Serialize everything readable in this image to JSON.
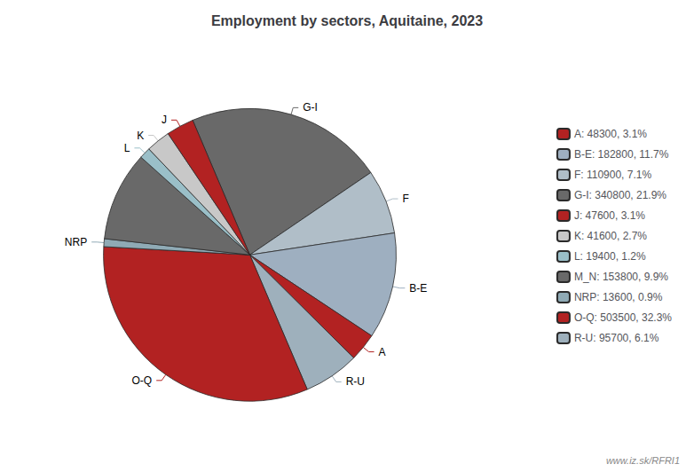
{
  "chart_data": {
    "type": "pie",
    "title": "Employment by sectors, Aquitaine, 2023",
    "categories": [
      "G-I",
      "F",
      "B-E",
      "A",
      "R-U",
      "O-Q",
      "NRP",
      "M_N",
      "L",
      "K",
      "J"
    ],
    "values": [
      340800,
      110900,
      182800,
      48300,
      95700,
      503500,
      13600,
      153800,
      19400,
      41600,
      47600
    ],
    "colors": [
      "#696969",
      "#b0bec8",
      "#9eafc0",
      "#b22222",
      "#9eb0bc",
      "#b22222",
      "#8faab5",
      "#696969",
      "#9abfc8",
      "#c8c8c8",
      "#b22222"
    ],
    "labels": [
      "G-I",
      "F",
      "B-E",
      "A",
      "R-U",
      "O-Q",
      "NRP",
      null,
      "L",
      "K",
      "J"
    ],
    "legend": "right",
    "legend_entries": [
      {
        "sector": "A",
        "label": "A: 48300, 3.1%"
      },
      {
        "sector": "B-E",
        "label": "B-E: 182800, 11.7%"
      },
      {
        "sector": "F",
        "label": "F: 110900, 7.1%"
      },
      {
        "sector": "G-I",
        "label": "G-I: 340800, 21.9%"
      },
      {
        "sector": "J",
        "label": "J: 47600, 3.1%"
      },
      {
        "sector": "K",
        "label": "K: 41600, 2.7%"
      },
      {
        "sector": "L",
        "label": "L: 19400, 1.2%"
      },
      {
        "sector": "M_N",
        "label": "M_N: 153800, 9.9%"
      },
      {
        "sector": "NRP",
        "label": "NRP: 13600, 0.9%"
      },
      {
        "sector": "O-Q",
        "label": "O-Q: 503500, 32.3%"
      },
      {
        "sector": "R-U",
        "label": "R-U: 95700, 6.1%"
      }
    ],
    "annotations": [
      "www.iz.sk/RFRI1"
    ]
  }
}
